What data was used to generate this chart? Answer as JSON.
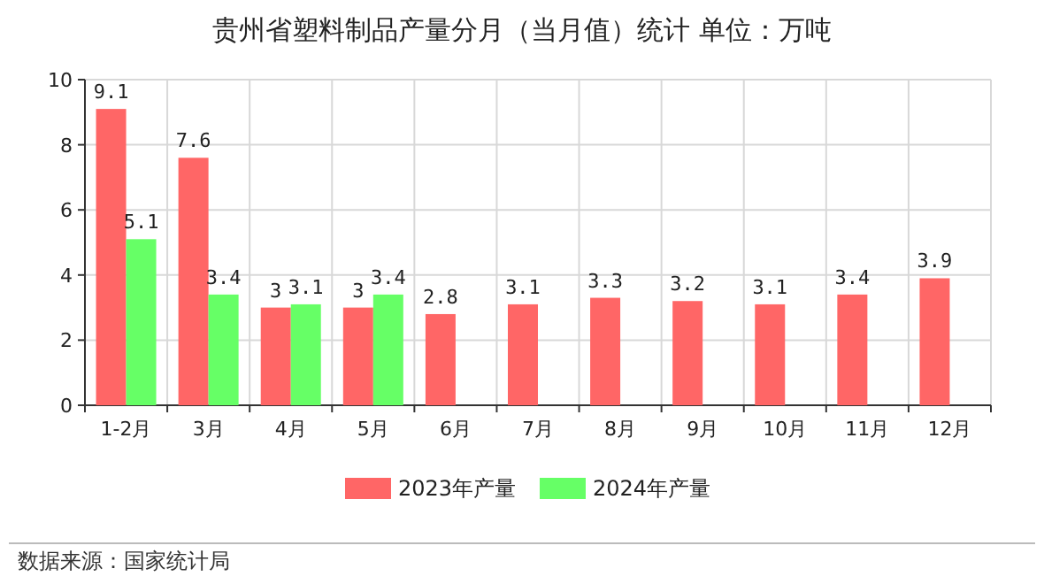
{
  "chart_data": {
    "type": "bar",
    "title": "贵州省塑料制品产量分月（当月值）统计 单位：万吨",
    "categories": [
      "1-2月",
      "3月",
      "4月",
      "5月",
      "6月",
      "7月",
      "8月",
      "9月",
      "10月",
      "11月",
      "12月"
    ],
    "series": [
      {
        "name": "2023年产量",
        "color": "#ff6666",
        "values": [
          9.1,
          7.6,
          3,
          3,
          2.8,
          3.1,
          3.3,
          3.2,
          3.1,
          3.4,
          3.9
        ]
      },
      {
        "name": "2024年产量",
        "color": "#66ff66",
        "values": [
          5.1,
          3.4,
          3.1,
          3.4,
          null,
          null,
          null,
          null,
          null,
          null,
          null
        ]
      }
    ],
    "ylim": [
      0,
      10
    ],
    "yticks": [
      0,
      2,
      4,
      6,
      8,
      10
    ],
    "grid": true,
    "legend": "bottom",
    "data_labels": true,
    "annotations": [
      "数据来源：国家统计局"
    ]
  }
}
